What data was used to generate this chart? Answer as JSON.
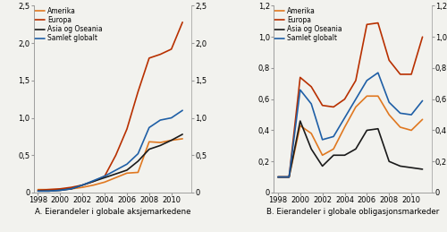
{
  "years": [
    1998,
    1999,
    2000,
    2001,
    2002,
    2003,
    2004,
    2005,
    2006,
    2007,
    2008,
    2009,
    2010,
    2011
  ],
  "panel_a": {
    "Amerika": [
      0.04,
      0.04,
      0.04,
      0.05,
      0.07,
      0.1,
      0.14,
      0.2,
      0.26,
      0.27,
      0.68,
      0.67,
      0.7,
      0.72
    ],
    "Europa": [
      0.03,
      0.04,
      0.05,
      0.07,
      0.1,
      0.15,
      0.22,
      0.5,
      0.85,
      1.35,
      1.8,
      1.85,
      1.92,
      2.28
    ],
    "Asia og Oseania": [
      0.02,
      0.02,
      0.03,
      0.05,
      0.1,
      0.15,
      0.2,
      0.25,
      0.3,
      0.42,
      0.58,
      0.63,
      0.7,
      0.78
    ],
    "Samlet globalt": [
      0.02,
      0.02,
      0.03,
      0.05,
      0.1,
      0.16,
      0.22,
      0.3,
      0.38,
      0.52,
      0.87,
      0.97,
      1.0,
      1.1
    ]
  },
  "panel_b": {
    "Amerika": [
      0.1,
      0.1,
      0.43,
      0.38,
      0.24,
      0.28,
      0.42,
      0.55,
      0.62,
      0.62,
      0.5,
      0.42,
      0.4,
      0.47
    ],
    "Europa": [
      0.1,
      0.1,
      0.74,
      0.68,
      0.56,
      0.55,
      0.6,
      0.72,
      1.08,
      1.09,
      0.85,
      0.76,
      0.76,
      1.0
    ],
    "Asia og Oseania": [
      0.1,
      0.1,
      0.46,
      0.28,
      0.17,
      0.24,
      0.24,
      0.28,
      0.4,
      0.41,
      0.2,
      0.17,
      0.16,
      0.15
    ],
    "Samlet globalt": [
      0.1,
      0.1,
      0.66,
      0.57,
      0.34,
      0.36,
      0.48,
      0.6,
      0.72,
      0.77,
      0.58,
      0.51,
      0.5,
      0.59
    ]
  },
  "colors": {
    "Amerika": "#E07820",
    "Europa": "#B83000",
    "Asia og Oseania": "#1A1A1A",
    "Samlet globalt": "#1F5FA6"
  },
  "ylim_a": [
    0,
    2.5
  ],
  "yticks_a": [
    0,
    0.5,
    1.0,
    1.5,
    2.0,
    2.5
  ],
  "ylim_b": [
    0,
    1.2
  ],
  "yticks_b": [
    0,
    0.2,
    0.4,
    0.6,
    0.8,
    1.0,
    1.2
  ],
  "xlim": [
    1997.6,
    2011.8
  ],
  "xticks": [
    1998,
    2000,
    2002,
    2004,
    2006,
    2008,
    2010
  ],
  "label_a": "A. Eierandeler i globale aksjemarkedene",
  "label_b": "B. Eierandeler i globale obligasjonsmarkeder",
  "legend_order": [
    "Amerika",
    "Europa",
    "Asia og Oseania",
    "Samlet globalt"
  ],
  "bg_color": "#F2F2EE",
  "line_width": 1.2
}
